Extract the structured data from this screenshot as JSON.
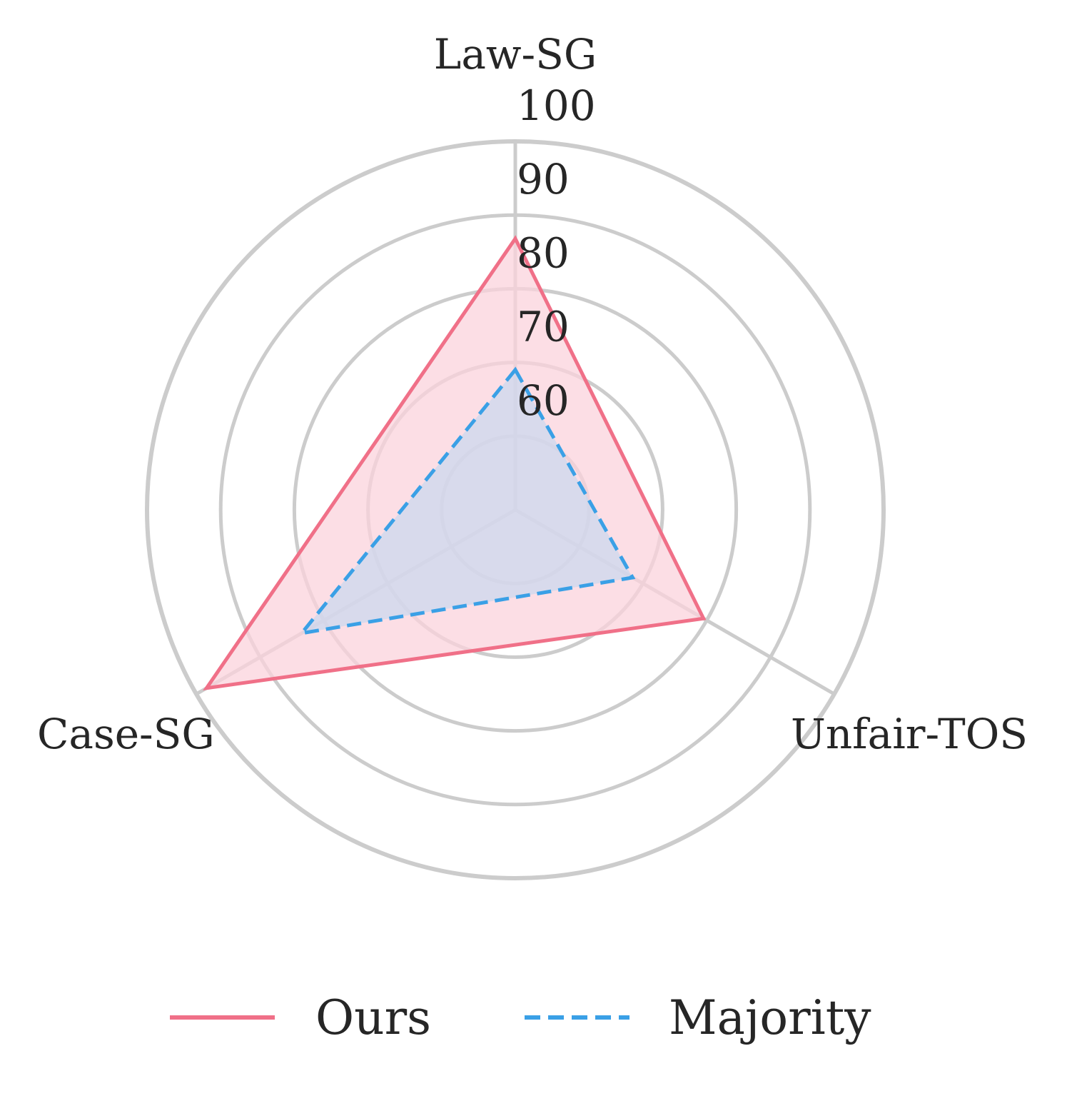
{
  "chart_data": {
    "type": "radar",
    "axes": [
      "Law-SG",
      "Unfair-TOS",
      "Case-SG"
    ],
    "r_ticks": [
      60,
      70,
      80,
      90,
      100
    ],
    "r_tick_labels": [
      "60",
      "70",
      "80",
      "90",
      "100"
    ],
    "r_range": [
      50,
      100
    ],
    "grid": true,
    "legend_position": "bottom",
    "series": [
      {
        "name": "Ours",
        "values": [
          86.8,
          79.5,
          98.4
        ],
        "color": "#f07088",
        "line_style": "solid",
        "fill": "#fbd3dc"
      },
      {
        "name": "Majority",
        "values": [
          69.0,
          68.4,
          83.5
        ],
        "color": "#3aa0e6",
        "line_style": "dashed",
        "fill": "#c9d9ef"
      }
    ],
    "grid_color": "#cccccc"
  }
}
